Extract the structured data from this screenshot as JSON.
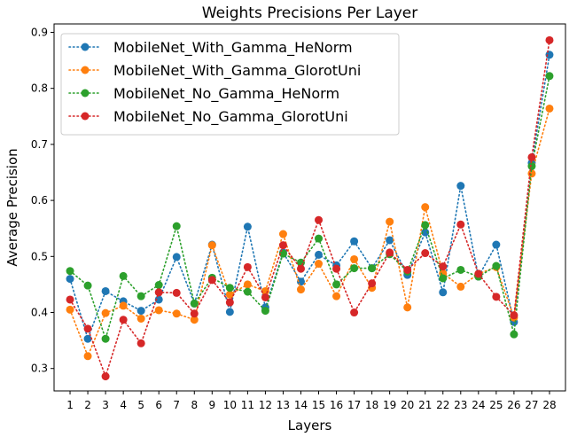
{
  "chart_data": {
    "type": "line",
    "title": "Weights Precisions Per Layer",
    "xlabel": "Layers",
    "ylabel": "Average Precision",
    "x": [
      1,
      2,
      3,
      4,
      5,
      6,
      7,
      8,
      9,
      10,
      11,
      12,
      13,
      14,
      15,
      16,
      17,
      18,
      19,
      20,
      21,
      22,
      23,
      24,
      25,
      26,
      27,
      28
    ],
    "xticks": [
      "1",
      "2",
      "3",
      "4",
      "5",
      "6",
      "7",
      "8",
      "9",
      "10",
      "11",
      "12",
      "13",
      "14",
      "15",
      "16",
      "17",
      "18",
      "19",
      "20",
      "21",
      "22",
      "23",
      "24",
      "25",
      "26",
      "27",
      "28"
    ],
    "yticks": [
      0.3,
      0.4,
      0.5,
      0.6,
      0.7,
      0.8,
      0.9
    ],
    "ytick_labels": [
      "0.3",
      "0.4",
      "0.5",
      "0.6",
      "0.7",
      "0.8",
      "0.9"
    ],
    "xlim": [
      0.1,
      28.9
    ],
    "ylim": [
      0.26,
      0.915
    ],
    "legend_position": "upper-left",
    "series": [
      {
        "name": "MobileNet_With_Gamma_HeNorm",
        "color": "#1f77b4",
        "values": [
          0.46,
          0.353,
          0.438,
          0.42,
          0.403,
          0.423,
          0.499,
          0.416,
          0.521,
          0.401,
          0.553,
          0.409,
          0.507,
          0.455,
          0.503,
          0.484,
          0.527,
          0.479,
          0.529,
          0.467,
          0.543,
          0.436,
          0.626,
          0.464,
          0.521,
          0.383,
          0.667,
          0.86
        ]
      },
      {
        "name": "MobileNet_With_Gamma_GlorotUni",
        "color": "#ff7f0e",
        "values": [
          0.405,
          0.322,
          0.399,
          0.412,
          0.389,
          0.404,
          0.398,
          0.387,
          0.52,
          0.432,
          0.45,
          0.438,
          0.54,
          0.441,
          0.487,
          0.429,
          0.495,
          0.444,
          0.562,
          0.409,
          0.588,
          0.47,
          0.446,
          0.469,
          0.481,
          0.391,
          0.648,
          0.764
        ]
      },
      {
        "name": "MobileNet_No_Gamma_HeNorm",
        "color": "#2ca02c",
        "values": [
          0.474,
          0.448,
          0.353,
          0.465,
          0.429,
          0.449,
          0.554,
          0.416,
          0.462,
          0.444,
          0.437,
          0.403,
          0.505,
          0.489,
          0.532,
          0.45,
          0.479,
          0.479,
          0.504,
          0.473,
          0.556,
          0.461,
          0.476,
          0.464,
          0.483,
          0.361,
          0.661,
          0.822
        ]
      },
      {
        "name": "MobileNet_No_Gamma_GlorotUni",
        "color": "#d62728",
        "values": [
          0.423,
          0.371,
          0.286,
          0.387,
          0.345,
          0.436,
          0.435,
          0.398,
          0.458,
          0.418,
          0.481,
          0.427,
          0.52,
          0.478,
          0.565,
          0.478,
          0.4,
          0.452,
          0.507,
          0.476,
          0.506,
          0.482,
          0.557,
          0.469,
          0.428,
          0.395,
          0.677,
          0.886
        ]
      }
    ]
  }
}
